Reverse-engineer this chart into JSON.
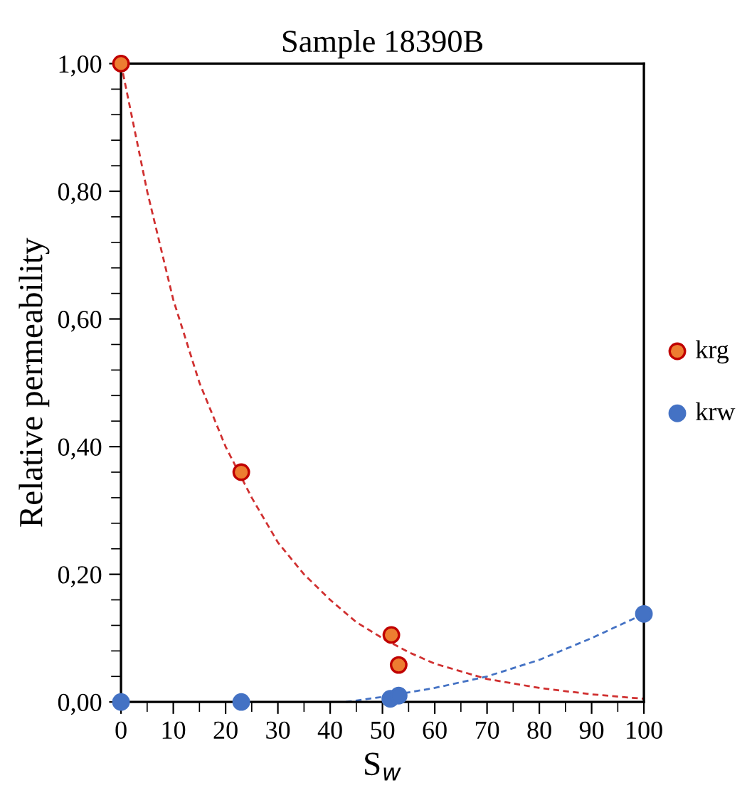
{
  "chart_data": {
    "type": "scatter",
    "title": "Sample 18390B",
    "xlabel": "S$_{w}$",
    "ylabel": "Relative permeability",
    "xlim": [
      0,
      100
    ],
    "xticks": [
      0,
      10,
      20,
      30,
      40,
      50,
      60,
      70,
      80,
      90,
      100
    ],
    "ylim": [
      0,
      1.0
    ],
    "yticks": [
      {
        "value": 0,
        "label": "0,00"
      },
      {
        "value": 0.2,
        "label": "0,20"
      },
      {
        "value": 0.4,
        "label": "0,40"
      },
      {
        "value": 0.6,
        "label": "0,60"
      },
      {
        "value": 0.8,
        "label": "0,80"
      },
      {
        "value": 1.0,
        "label": "1,00"
      }
    ],
    "grid": false,
    "legend": "right",
    "series": [
      {
        "type": "line",
        "line_style": "dashed",
        "color": "#d03030",
        "x": [
          0,
          5,
          10,
          15,
          20,
          25,
          30,
          35,
          40,
          45,
          50,
          55,
          60,
          70,
          80,
          90,
          100
        ],
        "values": [
          1.0,
          0.8,
          0.63,
          0.5,
          0.4,
          0.32,
          0.25,
          0.2,
          0.16,
          0.125,
          0.1,
          0.078,
          0.06,
          0.036,
          0.022,
          0.012,
          0.005
        ]
      },
      {
        "type": "line",
        "line_style": "dashed",
        "color": "#4472c4",
        "x": [
          43,
          50,
          60,
          70,
          80,
          90,
          100
        ],
        "values": [
          0,
          0.008,
          0.022,
          0.04,
          0.066,
          0.1,
          0.138
        ]
      },
      {
        "name": "krg",
        "marker": "circle",
        "color": "#ed7d31",
        "x": [
          0,
          23,
          51.7,
          53.1
        ],
        "values": [
          1.0,
          0.36,
          0.105,
          0.058
        ]
      },
      {
        "name": "krw",
        "marker": "circle",
        "color": "#4472c4",
        "x": [
          0,
          23,
          51.5,
          53.1,
          100
        ],
        "values": [
          0,
          0,
          0.005,
          0.01,
          0.138
        ]
      }
    ]
  }
}
